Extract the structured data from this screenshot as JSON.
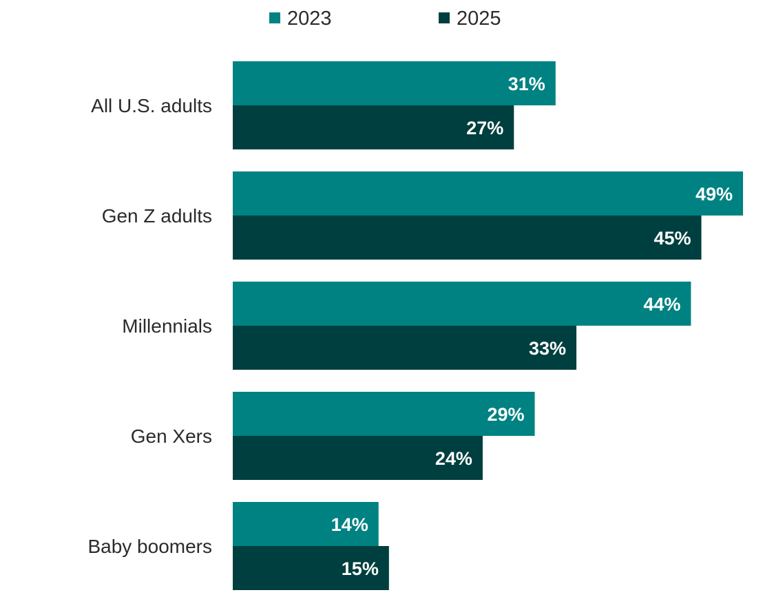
{
  "chart_data": {
    "type": "bar",
    "orientation": "horizontal",
    "categories": [
      "All U.S. adults",
      "Gen Z adults",
      "Millennials",
      "Gen Xers",
      "Baby boomers"
    ],
    "series": [
      {
        "name": "2023",
        "color": "#008282",
        "values": [
          31,
          49,
          44,
          29,
          14
        ],
        "labels": [
          "31%",
          "49%",
          "44%",
          "29%",
          "14%"
        ]
      },
      {
        "name": "2025",
        "color": "#003f3f",
        "values": [
          27,
          45,
          33,
          24,
          15
        ],
        "labels": [
          "27%",
          "45%",
          "33%",
          "24%",
          "15%"
        ]
      }
    ],
    "xlim": [
      0,
      49
    ],
    "title": "",
    "xlabel": "",
    "ylabel": "",
    "grid": false,
    "legend_placement": "top"
  }
}
